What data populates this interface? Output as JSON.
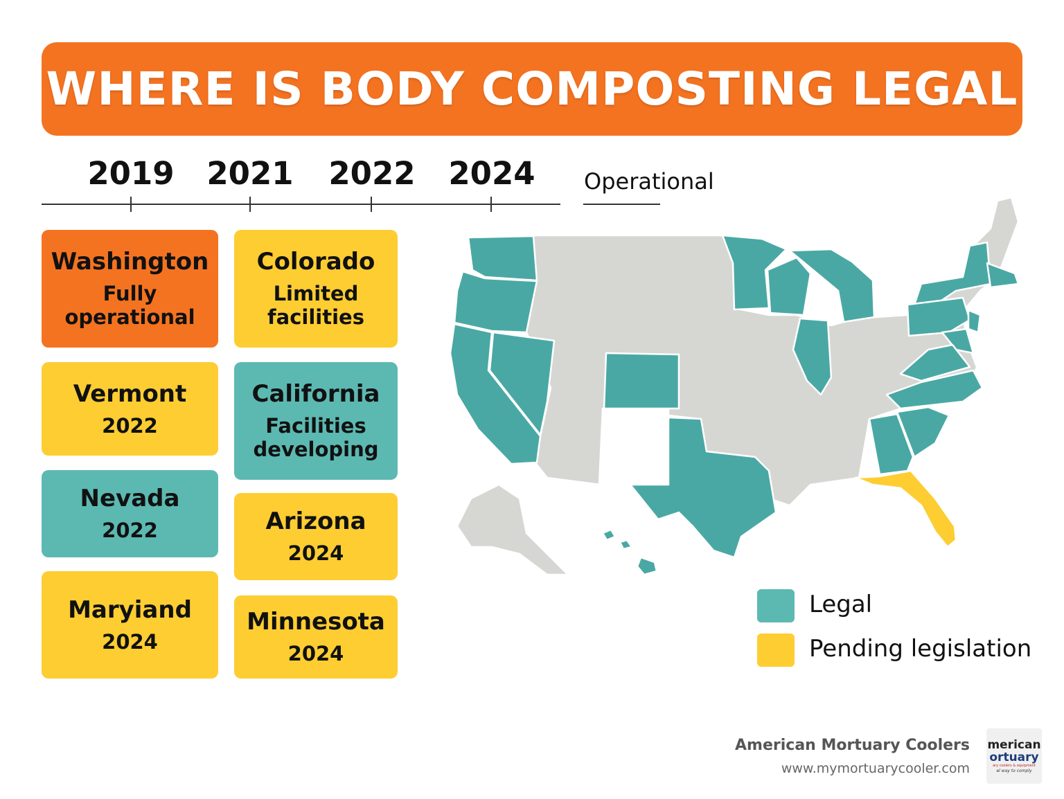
{
  "title": "WHERE IS BODY COMPOSTING LEGAL",
  "timeline": {
    "years": [
      "2019",
      "2021",
      "2022",
      "2024"
    ],
    "operational_label": "Operational"
  },
  "cards": [
    {
      "state": "Washington",
      "detail": "Fully operational",
      "color": "#f47321"
    },
    {
      "state": "Colorado",
      "detail": "Limited facilities",
      "color": "#fdcd32"
    },
    {
      "state": "Vermont",
      "detail": "2022",
      "color": "#fdcd32"
    },
    {
      "state": "California",
      "detail": "Facilities developing",
      "color": "#5cb9b2"
    },
    {
      "state": "Nevada",
      "detail": "2022",
      "color": "#5cb9b2"
    },
    {
      "state": "Arizona",
      "detail": "2024",
      "color": "#fdcd32"
    },
    {
      "state": "Maryiand",
      "detail": "2024",
      "color": "#fdcd32"
    },
    {
      "state": "Minnesota",
      "detail": "2024",
      "color": "#fdcd32"
    }
  ],
  "legend": [
    {
      "label": "Legal",
      "color": "#5cb9b2"
    },
    {
      "label": "Pending legislation",
      "color": "#fdcd32"
    }
  ],
  "colors": {
    "legal": "#4aa8a4",
    "pending": "#fdcd32",
    "other": "#d6d6d3",
    "accent": "#f47321"
  },
  "footer": {
    "brand": "American Mortuary Coolers",
    "url": "www.mymortuarycooler.com"
  },
  "logo": {
    "line1": "merican",
    "line2": "ortuary",
    "line3": "ary coolers & equipment",
    "line4": "el way to comply"
  }
}
